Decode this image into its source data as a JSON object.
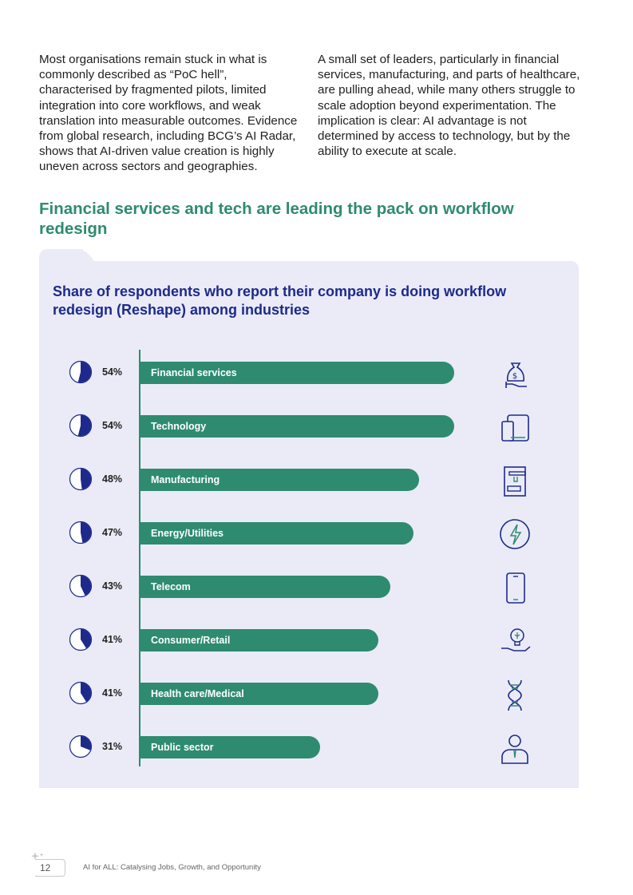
{
  "body": {
    "left_paragraph": "Most organisations remain stuck in what is commonly described as “PoC hell”, characterised by fragmented pilots, limited integration into core workflows, and weak translation into measurable outcomes. Evidence from global research, including BCG’s AI Radar, shows that AI-driven value creation is highly uneven across sectors and geographies.",
    "right_paragraph": "A small set of leaders, particularly in financial services, manufacturing, and parts of healthcare, are pulling ahead, while many others struggle to scale adoption beyond experimentation. The implication is clear: AI advantage is not determined by access to technology, but by the ability to execute at scale."
  },
  "section_title": "Financial services and tech are leading the pack on workflow redesign",
  "colors": {
    "accent": "#2e8b70",
    "navy": "#1d2a8c",
    "panel": "#eaebf7"
  },
  "chart_data": {
    "type": "bar",
    "orientation": "horizontal",
    "title": "Share of respondents who report their company is doing workflow redesign (Reshape) among industries",
    "categories": [
      "Financial services",
      "Technology",
      "Manufacturing",
      "Energy/Utilities",
      "Telecom",
      "Consumer/Retail",
      "Health care/Medical",
      "Public sector"
    ],
    "values": [
      54,
      54,
      48,
      47,
      43,
      41,
      41,
      31
    ],
    "value_labels": [
      "54%",
      "54%",
      "48%",
      "47%",
      "43%",
      "41%",
      "41%",
      "31%"
    ],
    "icons": [
      "money-bag-hand-icon",
      "devices-icon",
      "machine-icon",
      "energy-bolt-icon",
      "mobile-phone-icon",
      "lightbulb-hand-icon",
      "dna-icon",
      "person-icon"
    ],
    "unit": "%",
    "xlim": [
      0,
      54
    ]
  },
  "footer": {
    "page_number": "12",
    "text": "AI for ALL: Catalysing Jobs, Growth, and Opportunity"
  }
}
